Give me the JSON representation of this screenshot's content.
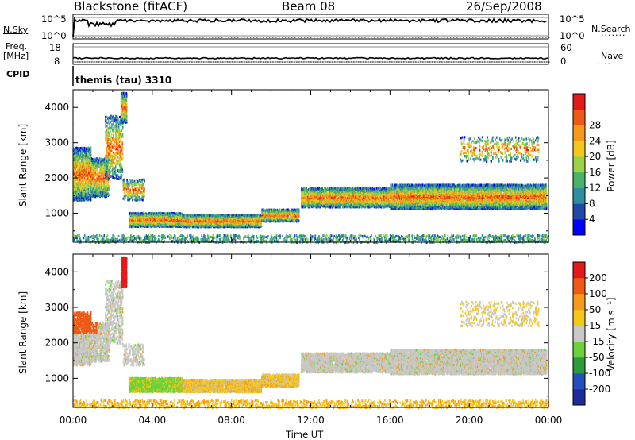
{
  "header": {
    "station": "Blackstone (fitACF)",
    "beam": "Beam 08",
    "date": "26/Sep/2008"
  },
  "left_labels": {
    "nsky": "N.Sky",
    "freq": "Freq.",
    "freq_unit": "[MHz]",
    "cpid": "CPID"
  },
  "right_labels": {
    "nsearch": "N.Search",
    "nave": "Nave"
  },
  "cpid_value": "themis (tau) 3310",
  "noise_panel": {
    "left_ticks": [
      "10^5",
      "10^0"
    ],
    "right_ticks": [
      "10^5",
      "10^0"
    ]
  },
  "freq_panel": {
    "left_ticks": [
      "18",
      "8"
    ],
    "right_ticks": [
      "60",
      "0"
    ]
  },
  "colors": {
    "power": [
      "#0000ff",
      "#1f4aa8",
      "#2f8ea0",
      "#49b36a",
      "#9bd24a",
      "#f2c81a",
      "#f59a1a",
      "#ee5a14",
      "#e41a1a"
    ],
    "velocity": [
      "#1e2c9a",
      "#244fc0",
      "#2b9a3a",
      "#6cd13a",
      "#c8c8c8",
      "#f2c81a",
      "#f59a1a",
      "#ee5a14",
      "#e41a1a"
    ]
  },
  "chart_data": [
    {
      "type": "heatmap",
      "panel": "power",
      "ylabel": "Slant Range [km]",
      "ylim": [
        180,
        4500
      ],
      "yticks": [
        1000,
        2000,
        3000,
        4000
      ],
      "xlim": [
        0,
        24
      ],
      "xticks": [
        "00:00",
        "04:00",
        "08:00",
        "12:00",
        "16:00",
        "20:00",
        "00:00"
      ],
      "xlabel": "Time UT",
      "colorbar_label": "Power [dB]",
      "colorbar_ticks": [
        "4",
        "8",
        "12",
        "16",
        "20",
        "24",
        "28"
      ]
    },
    {
      "type": "heatmap",
      "panel": "velocity",
      "ylabel": "Slant Range [km]",
      "ylim": [
        180,
        4500
      ],
      "yticks": [
        1000,
        2000,
        3000,
        4000
      ],
      "xlim": [
        0,
        24
      ],
      "xticks": [
        "00:00",
        "04:00",
        "08:00",
        "12:00",
        "16:00",
        "20:00",
        "00:00"
      ],
      "xlabel": "Time UT",
      "colorbar_label": "Velocity [m s⁻¹]",
      "colorbar_ticks": [
        "200",
        "100",
        "50",
        "15",
        "-15",
        "-50",
        "-100",
        "-200"
      ]
    }
  ]
}
